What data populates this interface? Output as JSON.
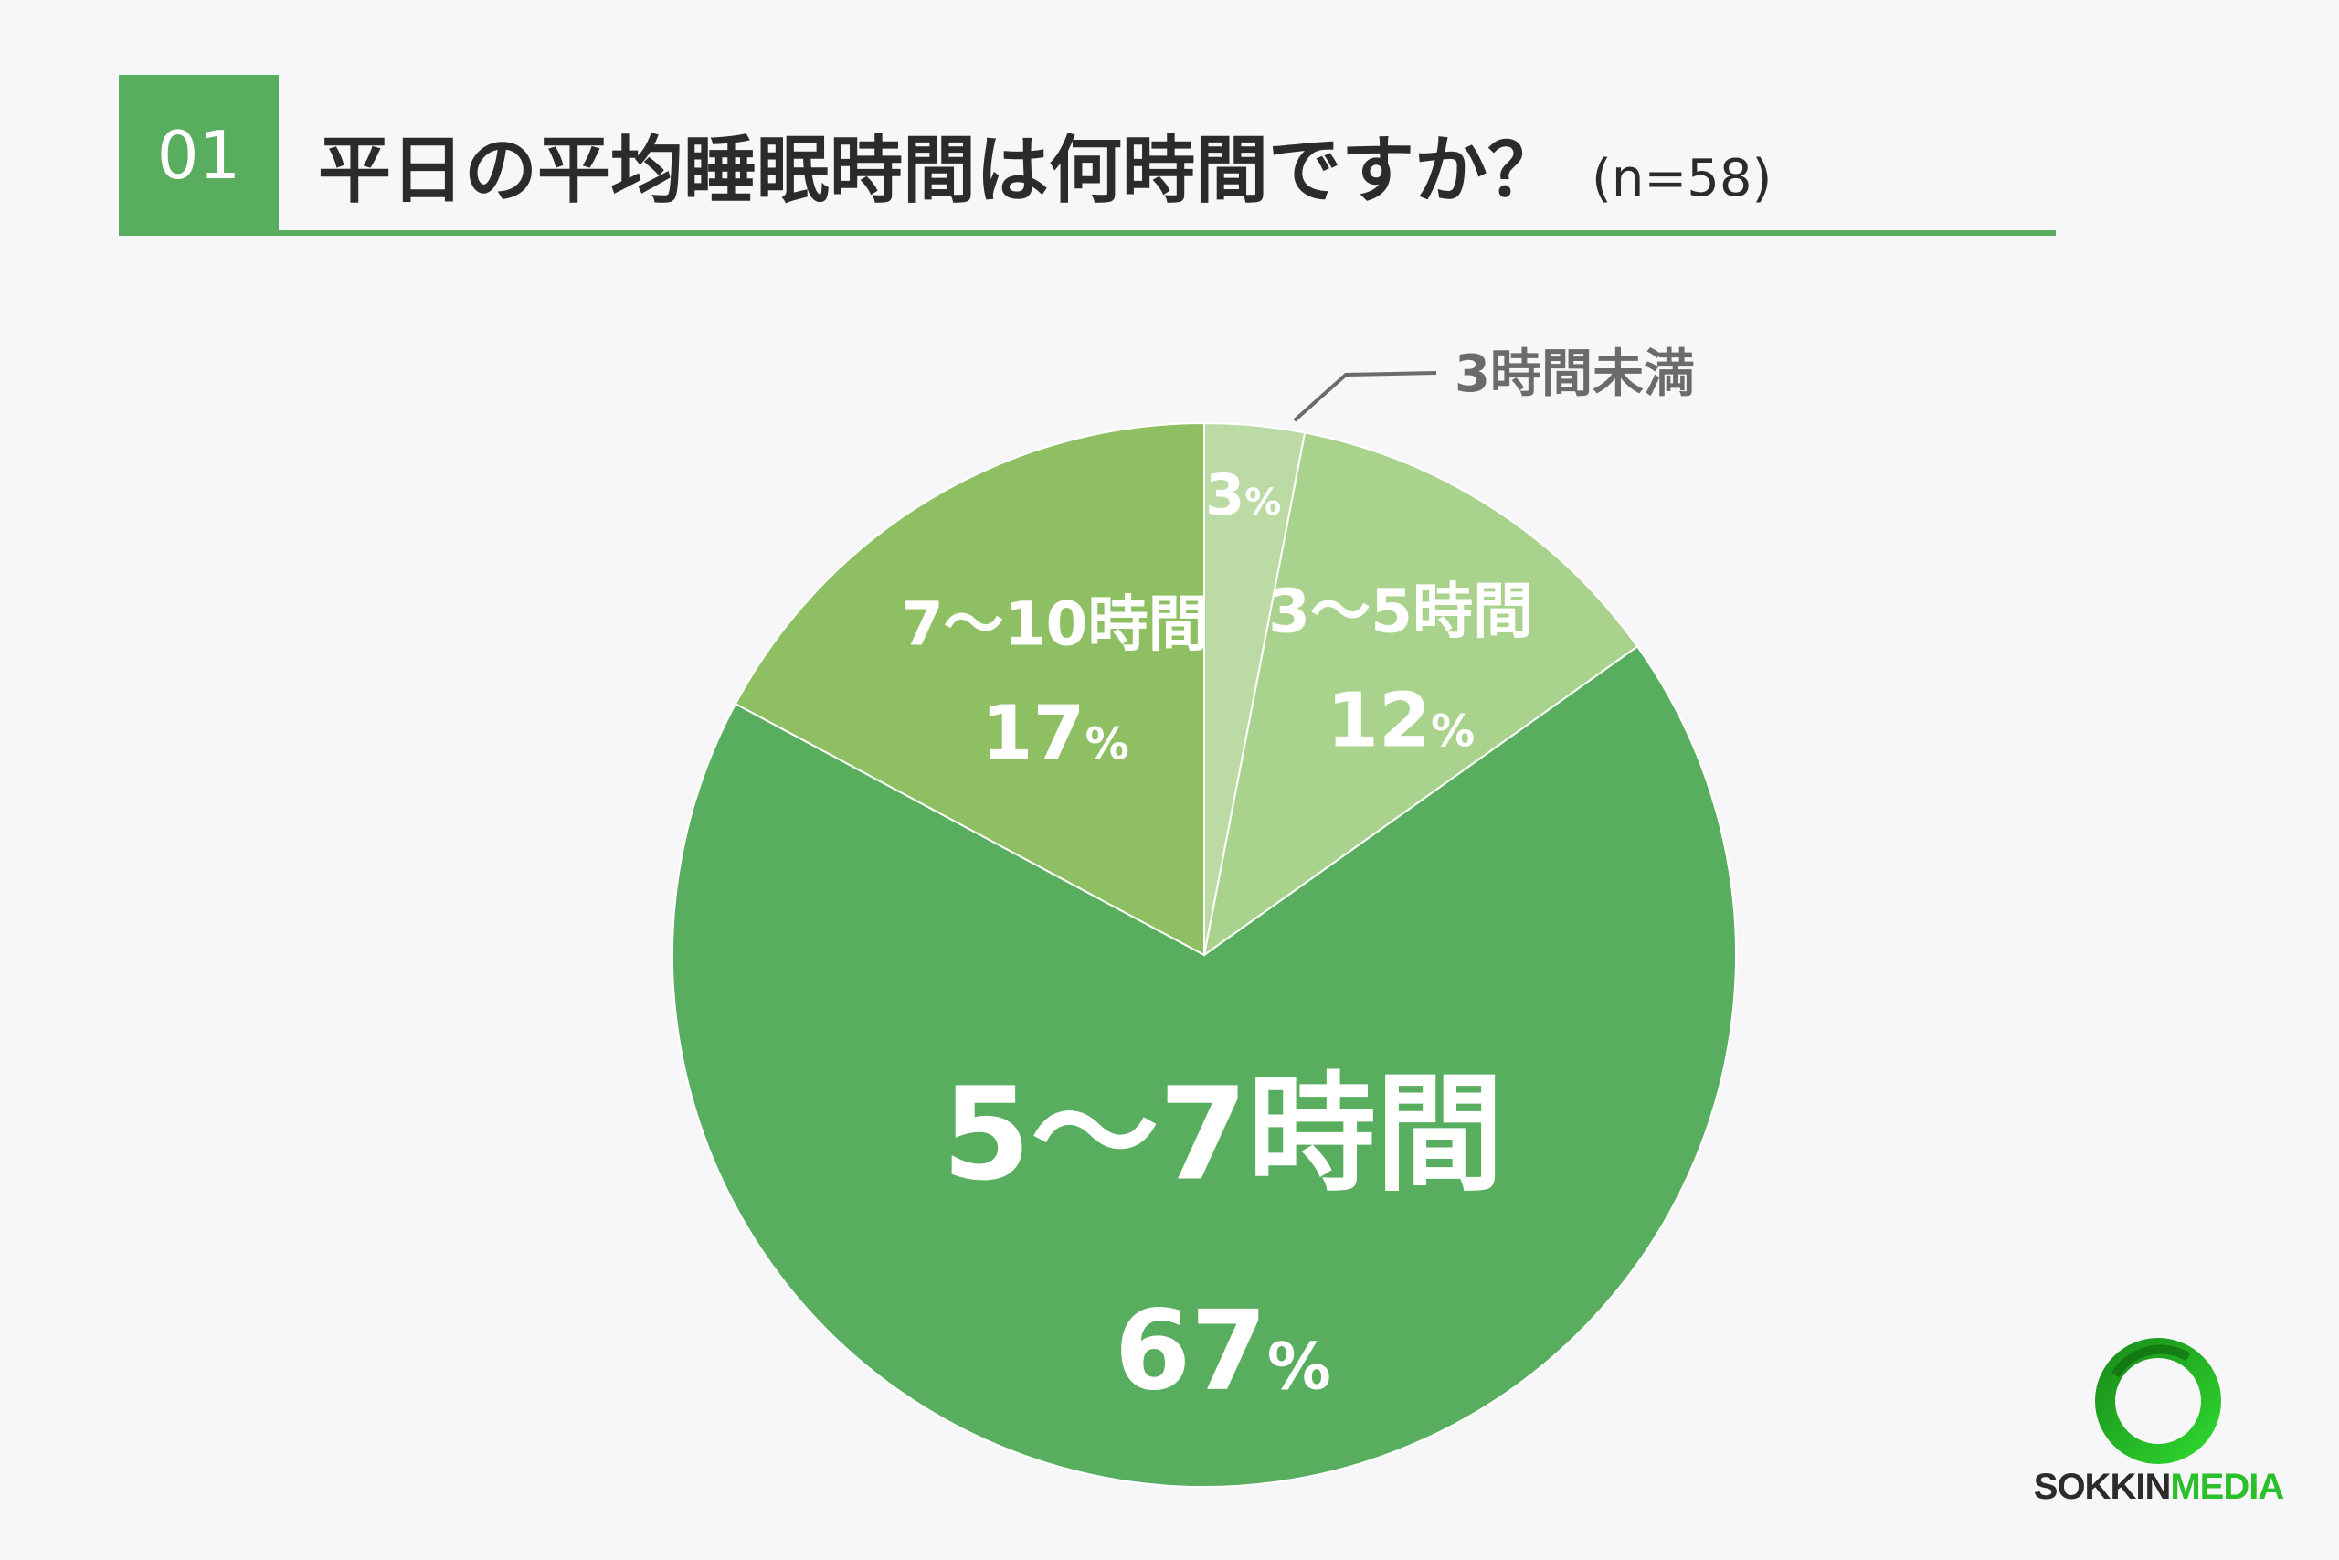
{
  "header": {
    "number": "01",
    "title": "平日の平均睡眠時間は何時間ですか？",
    "sample": "(n=58)"
  },
  "chart_data": {
    "type": "pie",
    "title": "平日の平均睡眠時間は何時間ですか？",
    "n": 58,
    "slices": [
      {
        "label": "3時間未満",
        "value": 3,
        "value_text": "3",
        "unit": "%",
        "color": "#bcdba4",
        "label_inside": false
      },
      {
        "label": "3〜5時間",
        "value": 12,
        "value_text": "12",
        "unit": "%",
        "color": "#a9d28c",
        "label_inside": true
      },
      {
        "label": "5〜7時間",
        "value": 67,
        "value_text": "67",
        "unit": "%",
        "color": "#58ad5f",
        "label_inside": true
      },
      {
        "label": "7〜10時間",
        "value": 17,
        "value_text": "17",
        "unit": "%",
        "color": "#8ebf63",
        "label_inside": true
      }
    ],
    "start": "top",
    "direction": "clockwise"
  },
  "logo": {
    "text_a": "SOKKIN",
    "text_b": "MEDIA",
    "ring_colors": [
      "#1a8f1a",
      "#2ed62e"
    ]
  }
}
